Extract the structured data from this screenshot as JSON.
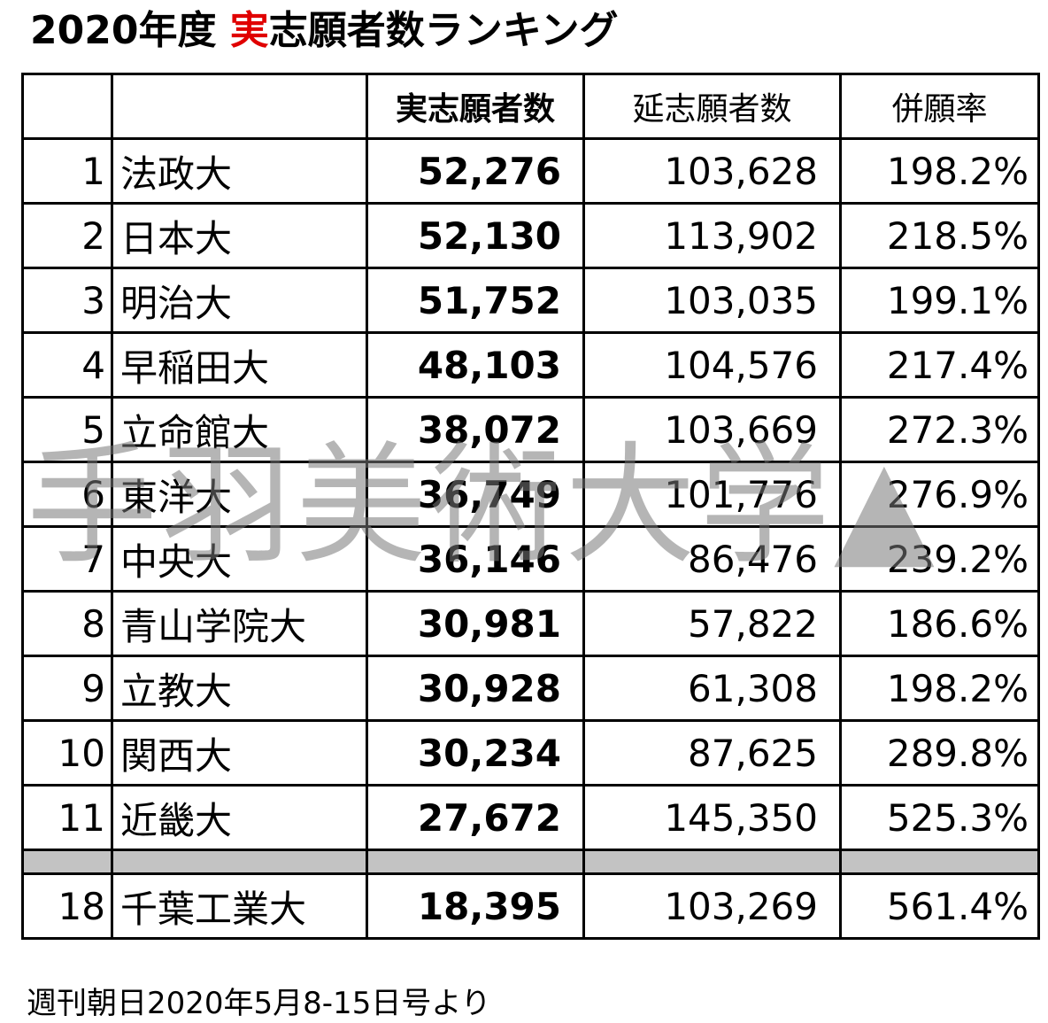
{
  "title": {
    "prefix": "2020年度 ",
    "accent": "実",
    "suffix": "志願者数ランキング"
  },
  "table": {
    "headers": {
      "rank": "",
      "name": "",
      "actual": "実志願者数",
      "total": "延志願者数",
      "rate": "併願率"
    },
    "rows": [
      {
        "rank": "1",
        "name": "法政大",
        "actual": "52,276",
        "total": "103,628",
        "rate": "198.2%"
      },
      {
        "rank": "2",
        "name": "日本大",
        "actual": "52,130",
        "total": "113,902",
        "rate": "218.5%"
      },
      {
        "rank": "3",
        "name": "明治大",
        "actual": "51,752",
        "total": "103,035",
        "rate": "199.1%"
      },
      {
        "rank": "4",
        "name": "早稲田大",
        "actual": "48,103",
        "total": "104,576",
        "rate": "217.4%"
      },
      {
        "rank": "5",
        "name": "立命館大",
        "actual": "38,072",
        "total": "103,669",
        "rate": "272.3%"
      },
      {
        "rank": "6",
        "name": "東洋大",
        "actual": "36,749",
        "total": "101,776",
        "rate": "276.9%"
      },
      {
        "rank": "7",
        "name": "中央大",
        "actual": "36,146",
        "total": "86,476",
        "rate": "239.2%"
      },
      {
        "rank": "8",
        "name": "青山学院大",
        "actual": "30,981",
        "total": "57,822",
        "rate": "186.6%"
      },
      {
        "rank": "9",
        "name": "立教大",
        "actual": "30,928",
        "total": "61,308",
        "rate": "198.2%"
      },
      {
        "rank": "10",
        "name": "関西大",
        "actual": "30,234",
        "total": "87,625",
        "rate": "289.8%"
      },
      {
        "rank": "11",
        "name": "近畿大",
        "actual": "27,672",
        "total": "145,350",
        "rate": "525.3%"
      }
    ],
    "extra_row": {
      "rank": "18",
      "name": "千葉工業大",
      "actual": "18,395",
      "total": "103,269",
      "rate": "561.4%"
    }
  },
  "watermark": "手羽美術大学▲",
  "source": "週刊朝日2020年5月8-15日号より"
}
